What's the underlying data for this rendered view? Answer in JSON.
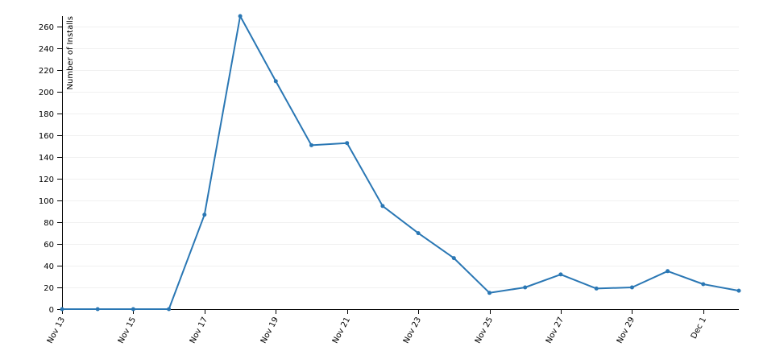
{
  "chart_data": {
    "type": "line",
    "title": "",
    "xlabel": "",
    "ylabel": "Number of Installs",
    "x": [
      "Nov 13",
      "Nov 14",
      "Nov 15",
      "Nov 16",
      "Nov 17",
      "Nov 18",
      "Nov 19",
      "Nov 20",
      "Nov 21",
      "Nov 22",
      "Nov 23",
      "Nov 24",
      "Nov 25",
      "Nov 26",
      "Nov 27",
      "Nov 28",
      "Nov 29",
      "Nov 30",
      "Dec 1",
      "Dec 2"
    ],
    "x_tick_labels": [
      "Nov 13",
      "Nov 15",
      "Nov 17",
      "Nov 19",
      "Nov 21",
      "Nov 23",
      "Nov 25",
      "Nov 27",
      "Nov 29",
      "Dec 1"
    ],
    "series": [
      {
        "values": [
          0,
          0,
          0,
          0,
          87,
          270,
          210,
          151,
          153,
          95,
          70,
          47,
          15,
          20,
          32,
          19,
          20,
          35,
          23,
          17
        ]
      }
    ],
    "ylim": [
      0,
      270
    ],
    "y_ticks": [
      0,
      20,
      40,
      60,
      80,
      100,
      120,
      140,
      160,
      180,
      200,
      220,
      240,
      260
    ],
    "grid": true,
    "legend": "none",
    "colors": {
      "line": "#2a77b4",
      "grid": "#f0f0f0",
      "axis": "#000000"
    }
  }
}
